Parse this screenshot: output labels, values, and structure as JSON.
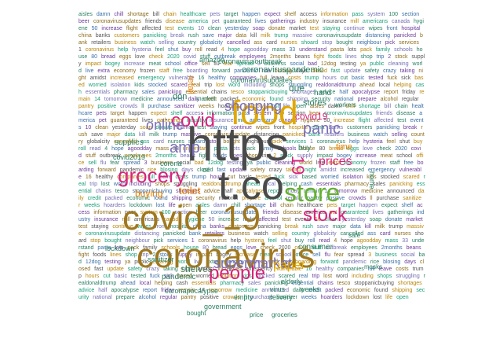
{
  "cloud": {
    "major_words": [
      {
        "text": "https",
        "color": "#4a4a4a"
      },
      {
        "text": "t.co",
        "color": "#4a4a4a"
      },
      {
        "text": "covid_19",
        "color": "#a07820"
      },
      {
        "text": "coronavirus",
        "color": "#a07820"
      },
      {
        "text": "food",
        "color": "#e0a800"
      },
      {
        "text": "covid",
        "color": "#d6247a"
      },
      {
        "text": "store",
        "color": "#66b032"
      },
      {
        "text": "grocery",
        "color": "#d6247a"
      },
      {
        "text": "stock",
        "color": "#d6247a"
      },
      {
        "text": "people",
        "color": "#d6247a"
      },
      {
        "text": "shopping",
        "color": "#7b6fb8"
      },
      {
        "text": "supermarket",
        "color": "#7b6fb8"
      },
      {
        "text": "online",
        "color": "#7b6fb8"
      },
      {
        "text": "amp",
        "color": "#7b6fb8"
      },
      {
        "text": "panic",
        "color": "#7b6fb8"
      },
      {
        "text": "prices",
        "color": "#d6247a"
      },
      {
        "text": "paper",
        "color": "#e0a800"
      },
      {
        "text": "19",
        "color": "#d6247a"
      },
      {
        "text": "covid19",
        "color": "#d6247a"
      },
      {
        "text": "toilet",
        "color": "#e67e00"
      },
      {
        "text": "buying",
        "color": "#e67e00"
      },
      {
        "text": "shelves",
        "color": "#4a7a3a"
      },
      {
        "text": "coronavirusoutbreak",
        "color": "#2a7f62"
      },
      {
        "text": "coronaviruspandemic",
        "color": "#2a7f62"
      },
      {
        "text": "pandemic",
        "color": "#2a7f62"
      },
      {
        "text": "consumer",
        "color": "#2a7f62"
      },
      {
        "text": "supplies",
        "color": "#2a7f62"
      },
      {
        "text": "stores",
        "color": "#2a7f62"
      },
      {
        "text": "retail",
        "color": "#e67e00"
      },
      {
        "text": "due",
        "color": "#2a7f62"
      },
      {
        "text": "don",
        "color": "#2a7f62"
      },
      {
        "text": "time",
        "color": "#e67e00"
      },
      {
        "text": "workers",
        "color": "#2a7f62"
      },
      {
        "text": "coronavirusupdates",
        "color": "#2a7f62"
      },
      {
        "text": "coronapocalypse",
        "color": "#2a7f62"
      },
      {
        "text": "elderly",
        "color": "#2a7f62"
      },
      {
        "text": "empty",
        "color": "#2a7f62"
      },
      {
        "text": "delivery",
        "color": "#2a7f62"
      },
      {
        "text": "government",
        "color": "#2a7f62"
      },
      {
        "text": "bought",
        "color": "#2a7f62"
      },
      {
        "text": "virus",
        "color": "#2a7f62"
      },
      {
        "text": "weeks",
        "color": "#2a7f62"
      },
      {
        "text": "masks",
        "color": "#2a7f62"
      },
      {
        "text": "safe",
        "color": "#2a7f62"
      },
      {
        "text": "home",
        "color": "#2a7f62"
      },
      {
        "text": "buy",
        "color": "#2a7f62"
      },
      {
        "text": "hand",
        "color": "#2a7f62"
      },
      {
        "text": "sanitizer",
        "color": "#2a7f62"
      },
      {
        "text": "lockdown",
        "color": "#2a7f62"
      },
      {
        "text": "price",
        "color": "#2a7f62"
      },
      {
        "text": "groceries",
        "color": "#2a7f62"
      },
      {
        "text": "amazon",
        "color": "#2a7f62"
      },
      {
        "text": "market",
        "color": "#2a7f62"
      },
      {
        "text": "corona",
        "color": "#2a7f62"
      },
      {
        "text": "covid2019",
        "color": "#2a7f62"
      },
      {
        "text": "oil",
        "color": "#2a7f62"
      }
    ],
    "filler_words": [
      "aisles",
      "damn",
      "chill",
      "shortage",
      "bill",
      "chain",
      "healthcare",
      "pets",
      "target",
      "happen",
      "expect",
      "shelf",
      "access",
      "information",
      "pass",
      "system",
      "100",
      "section",
      "beer",
      "coronavirusupdates",
      "friends",
      "disease",
      "america",
      "pet",
      "guaranteed",
      "lives",
      "gatherings",
      "industry",
      "insurance",
      "mill",
      "americans",
      "canada",
      "hygiene",
      "50",
      "increase",
      "flight",
      "affected",
      "test",
      "events",
      "10",
      "clean",
      "yesterday",
      "soap",
      "donate",
      "market",
      "test",
      "staying",
      "continue",
      "wipes",
      "front",
      "hospital",
      "china",
      "banks",
      "customers",
      "panicking",
      "break",
      "rush",
      "save",
      "major",
      "data",
      "kill",
      "milk",
      "trump",
      "massive",
      "coronavirusupdate",
      "distancing",
      "panicked",
      "bank",
      "retailers",
      "business",
      "watch",
      "selling",
      "country",
      "globalcity",
      "cancelled",
      "ass",
      "card",
      "nurses",
      "shoard",
      "stop",
      "bought",
      "neighbour",
      "pick",
      "services",
      "1",
      "coronavirus",
      "help",
      "hysteria",
      "feel",
      "shut",
      "buy",
      "roll",
      "read",
      "4",
      "hope",
      "agoodday",
      "mass",
      "33",
      "understand",
      "pasta",
      "lots",
      "pack",
      "family",
      "schools",
      "house",
      "80",
      "bread",
      "eggs",
      "love",
      "check",
      "2020",
      "covid",
      "stuff",
      "outbreak",
      "employees",
      "2months",
      "beans",
      "fight",
      "foods",
      "lines",
      "shop",
      "trip",
      "2",
      "stock",
      "supply",
      "impact",
      "bogey",
      "increase",
      "meat",
      "school",
      "office",
      "sell",
      "flu",
      "fear",
      "spread",
      "3",
      "business",
      "social",
      "bad",
      "12dog",
      "testing",
      "ya",
      "public",
      "cleaning",
      "world",
      "live",
      "extra",
      "economy",
      "frozen",
      "staff",
      "free",
      "boarding",
      "forward",
      "pandemic",
      "rice",
      "blosing",
      "days",
      "closed",
      "fast",
      "update",
      "safety",
      "crazy",
      "taking",
      "night",
      "amidst",
      "increased",
      "emergency",
      "vulnerable",
      "16",
      "healthy",
      "companies",
      "full",
      "leave",
      "costs",
      "trump",
      "hours",
      "cut",
      "basic",
      "tested",
      "fuck",
      "sick",
      "based",
      "worried",
      "isolation",
      "kids",
      "stocked",
      "scared",
      "real",
      "trip",
      "lost",
      "word",
      "including",
      "shops",
      "struggling",
      "realdonaldtrump",
      "ahead",
      "local",
      "helping",
      "cash",
      "essentials",
      "pharmacy",
      "sales",
      "panicking",
      "essential",
      "chains",
      "tesco",
      "stoppanicbuying",
      "shortages",
      "advice",
      "half",
      "apocalypse",
      "report",
      "friday",
      "remain",
      "14",
      "tomorrow",
      "medicine",
      "announced",
      "daily",
      "credit",
      "packed",
      "economic",
      "found",
      "shipping",
      "security",
      "national",
      "prepare",
      "alcohol",
      "regular",
      "pantry",
      "positive",
      "crowds",
      "ll",
      "purchase",
      "sanitizer",
      "weeks",
      "hoarders",
      "lockdown",
      "lost",
      "life",
      "open"
    ]
  }
}
